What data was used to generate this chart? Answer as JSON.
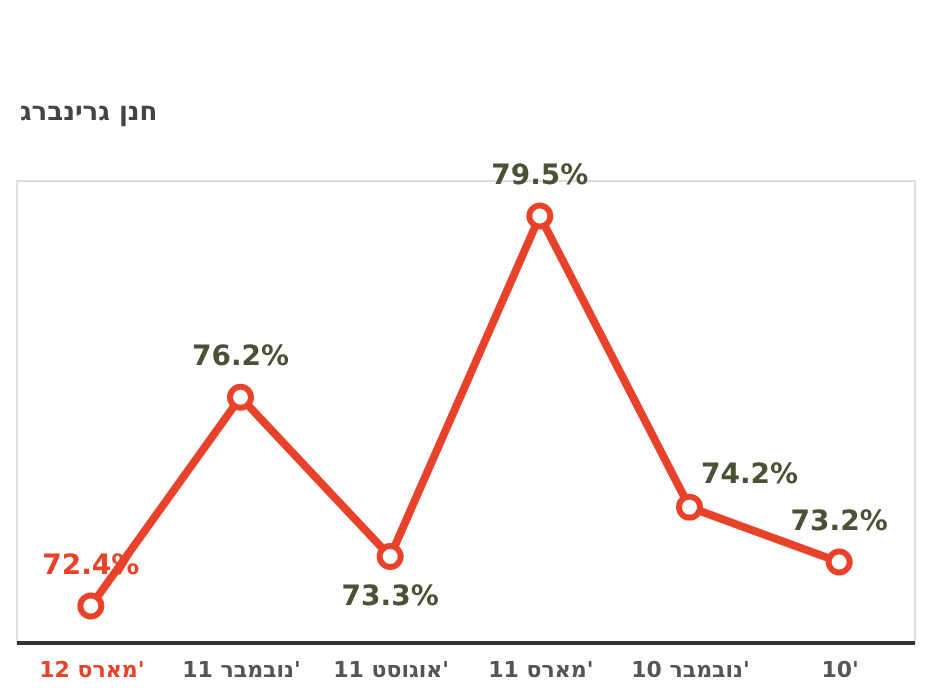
{
  "chart_data": {
    "type": "line",
    "categories": [
      "מארס 12'",
      "נובמבר 11'",
      "אוגוסט 11'",
      "מארס 11'",
      "נובמבר 10'",
      "10'"
    ],
    "series": [
      {
        "color": "#e8432a",
        "values": [
          72.4,
          76.2,
          73.3,
          79.5,
          74.2,
          73.2
        ],
        "value_labels": [
          "72.4%",
          "76.2%",
          "73.3%",
          "79.5%",
          "74.2%",
          "73.2%"
        ]
      }
    ],
    "marker": "circle",
    "line_style": "solid",
    "grid": false,
    "tick_labels": "x",
    "annotations": [
      "חנן גרינברג"
    ]
  }
}
